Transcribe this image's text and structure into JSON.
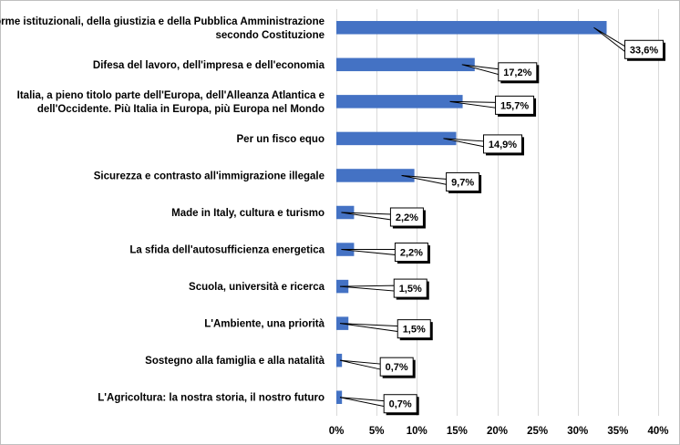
{
  "chart_data": {
    "type": "bar",
    "orientation": "horizontal",
    "categories": [
      "Riforme istituzionali, della giustizia e della Pubblica Amministrazione|secondo Costituzione",
      "Difesa del lavoro, dell'impresa e dell'economia",
      "Italia, a pieno titolo parte dell'Europa, dell'Alleanza Atlantica e|dell'Occidente. Più Italia in Europa, più Europa nel Mondo",
      "Per un fisco equo",
      "Sicurezza e contrasto all'immigrazione illegale",
      "Made in Italy, cultura e turismo",
      "La sfida dell'autosufficienza energetica",
      "Scuola, università e ricerca",
      "L'Ambiente, una priorità",
      "Sostegno alla famiglia e alla natalità",
      "L'Agricoltura: la nostra storia, il nostro futuro"
    ],
    "values": [
      33.6,
      17.2,
      15.7,
      14.9,
      9.7,
      2.2,
      2.2,
      1.5,
      1.5,
      0.7,
      0.7
    ],
    "data_labels": [
      "33,6%",
      "17,2%",
      "15,7%",
      "14,9%",
      "9,7%",
      "2,2%",
      "2,2%",
      "1,5%",
      "1,5%",
      "0,7%",
      "0,7%"
    ],
    "xlim": [
      0,
      40
    ],
    "x_ticks": [
      0,
      5,
      10,
      15,
      20,
      25,
      30,
      35,
      40
    ],
    "x_tick_labels": [
      "0%",
      "5%",
      "10%",
      "15%",
      "20%",
      "25%",
      "30%",
      "35%",
      "40%"
    ],
    "grid": "vertical",
    "bar_color": "#4472C4",
    "gridline_color": "#D9D9D9",
    "title": "",
    "xlabel": "",
    "ylabel": ""
  }
}
